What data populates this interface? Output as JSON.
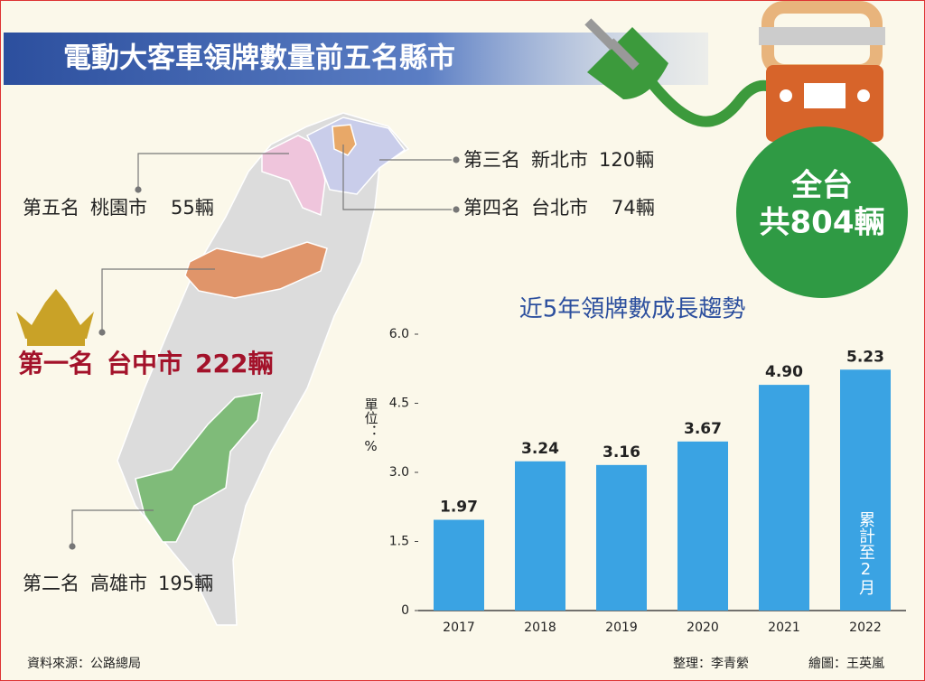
{
  "header": {
    "title": "電動大客車領牌數量前五名縣市"
  },
  "rankings": [
    {
      "rank": "第一名",
      "city": "台中市",
      "count": "222輛"
    },
    {
      "rank": "第二名",
      "city": "高雄市",
      "count": "195輛"
    },
    {
      "rank": "第三名",
      "city": "新北市",
      "count": "120輛"
    },
    {
      "rank": "第四名",
      "city": "台北市",
      "count": "74輛"
    },
    {
      "rank": "第五名",
      "city": "桃園市",
      "count": "55輛"
    }
  ],
  "total": {
    "line1": "全台",
    "line2": "共804輛"
  },
  "chart_data": {
    "type": "bar",
    "title": "近5年領牌數成長趨勢",
    "y_label": "單位：%",
    "categories": [
      "2017",
      "2018",
      "2019",
      "2020",
      "2021",
      "2022"
    ],
    "values": [
      1.97,
      3.24,
      3.16,
      3.67,
      4.9,
      5.23
    ],
    "value_labels": [
      "1.97",
      "3.24",
      "3.16",
      "3.67",
      "4.90",
      "5.23"
    ],
    "color": "#3aa3e3",
    "ylim": [
      0,
      6
    ],
    "yticks": [
      0,
      1.5,
      {
        "value": 3,
        "label": "3.0"
      },
      4.5,
      {
        "value": 6,
        "label": "6.0"
      }
    ],
    "annotation": "累計至2月"
  },
  "footer": {
    "source": "資料來源：公路總局",
    "editor": "整理：李青縈",
    "illustrator": "繪圖：王英嵐"
  }
}
